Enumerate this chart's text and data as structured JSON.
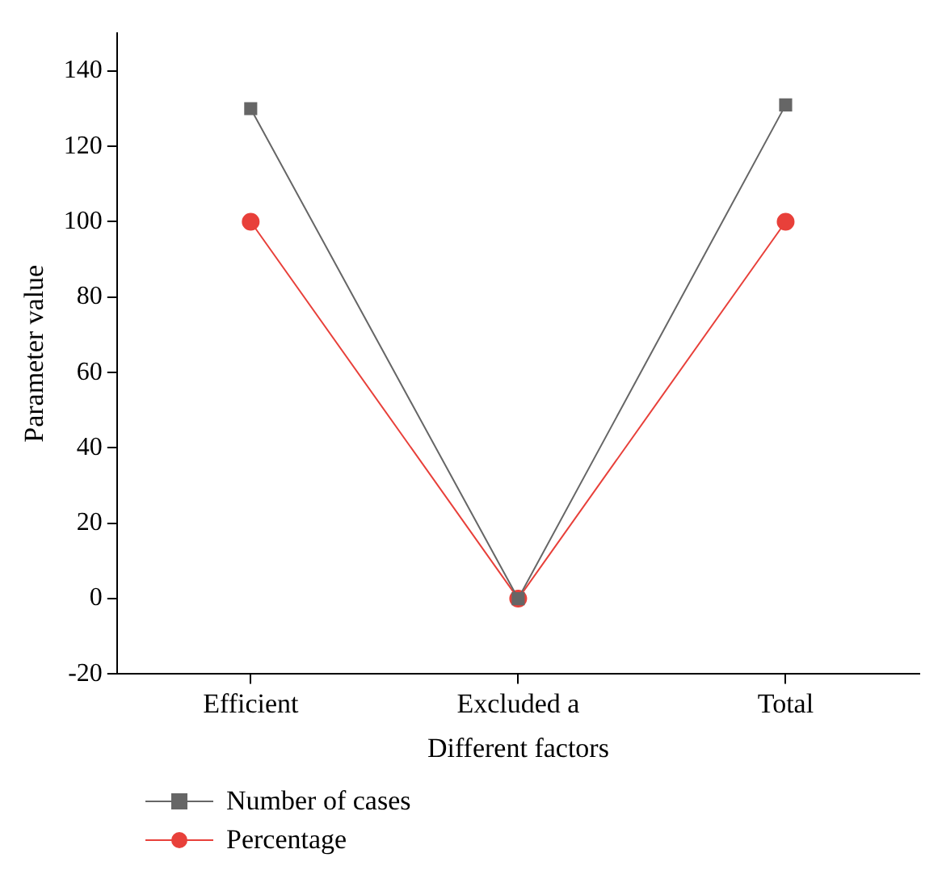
{
  "chart_data": {
    "type": "line",
    "xlabel": "Different factors",
    "ylabel": "Parameter value",
    "categories": [
      "Efficient",
      "Excluded a",
      "Total"
    ],
    "series": [
      {
        "name": "Number of cases",
        "color": "#666666",
        "marker": "square",
        "values": [
          130,
          0,
          131
        ]
      },
      {
        "name": "Percentage",
        "color": "#e8403a",
        "marker": "circle",
        "values": [
          100,
          0,
          100
        ]
      }
    ],
    "ylim": [
      -20,
      150
    ],
    "yticks": [
      -20,
      0,
      20,
      40,
      60,
      80,
      100,
      120,
      140
    ],
    "grid": false,
    "legend": "bottom left",
    "line_style": "solid"
  }
}
